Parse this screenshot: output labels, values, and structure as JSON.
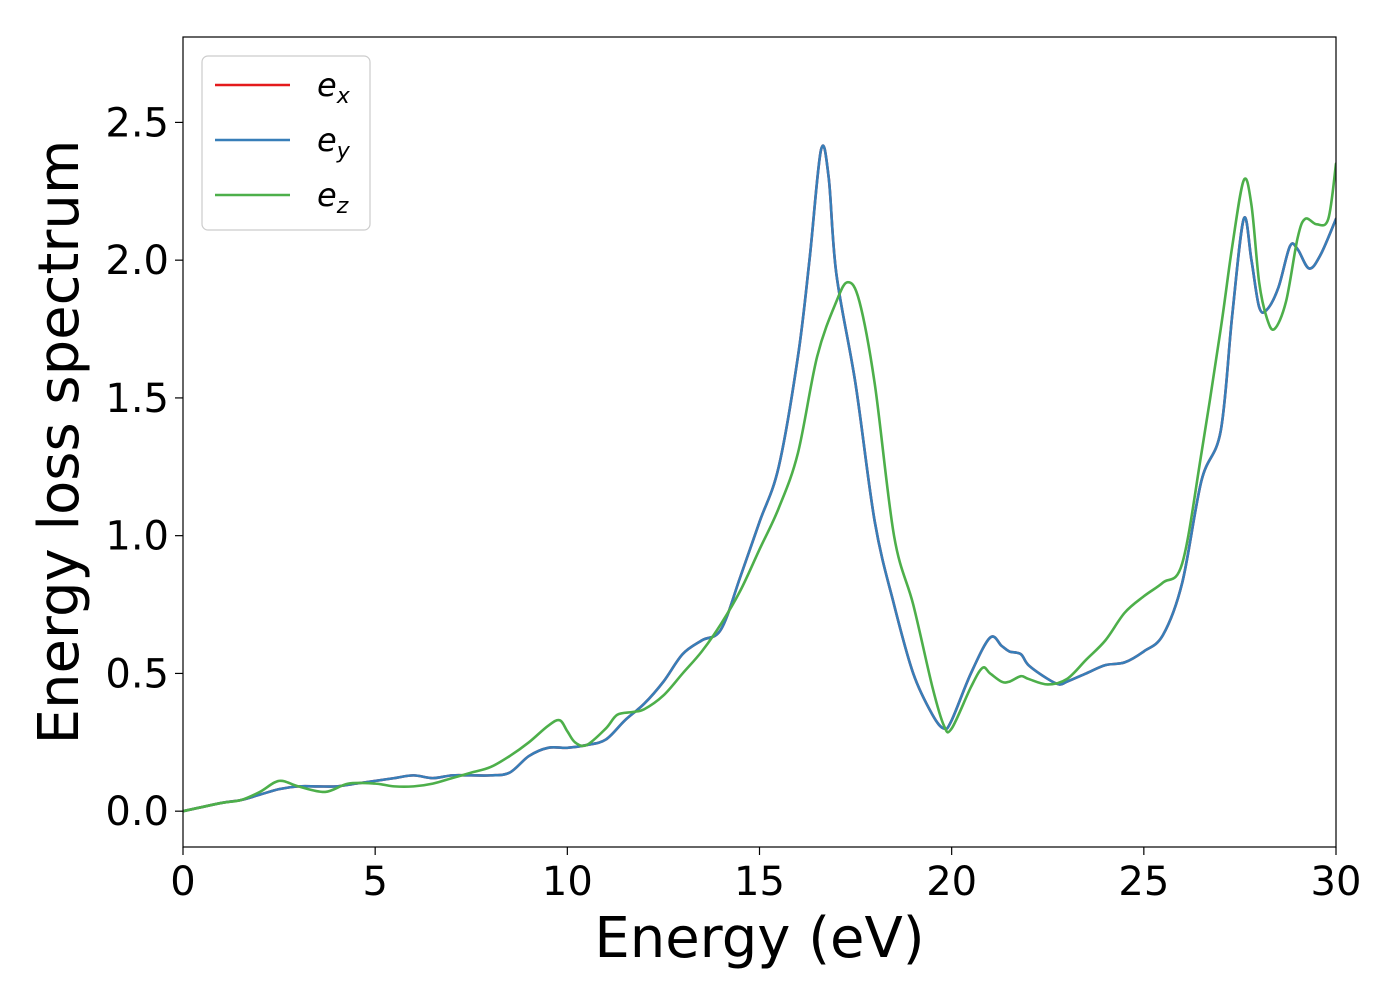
{
  "chart_data": {
    "type": "line",
    "xlabel": "Energy (eV)",
    "ylabel": "Energy loss spectrum",
    "xlim": [
      0,
      30
    ],
    "ylim": [
      -0.13,
      2.81
    ],
    "xticks": [
      0,
      5,
      10,
      15,
      20,
      25,
      30
    ],
    "yticks": [
      0.0,
      0.5,
      1.0,
      1.5,
      2.0,
      2.5
    ],
    "xtick_labels": [
      "0",
      "5",
      "10",
      "15",
      "20",
      "25",
      "30"
    ],
    "ytick_labels": [
      "0.0",
      "0.5",
      "1.0",
      "1.5",
      "2.0",
      "2.5"
    ],
    "grid": false,
    "legend_position": "top-left",
    "series": [
      {
        "name": "e_x",
        "label_base": "e",
        "label_sub": "x",
        "color": "#e41a1c",
        "x": [
          0,
          1,
          1.5,
          2,
          2.5,
          3,
          3.5,
          4,
          4.5,
          5,
          5.5,
          6,
          6.5,
          7,
          7.5,
          8,
          8.5,
          9,
          9.5,
          10,
          10.5,
          11,
          11.5,
          12,
          12.5,
          13,
          13.5,
          14,
          14.5,
          15,
          15.5,
          16,
          16.3,
          16.6,
          16.8,
          17,
          17.5,
          18,
          18.5,
          19,
          19.5,
          19.8,
          20,
          20.5,
          21,
          21.3,
          21.5,
          21.8,
          22,
          22.5,
          22.8,
          23,
          23.5,
          24,
          24.5,
          25,
          25.5,
          26,
          26.5,
          27,
          27.3,
          27.6,
          27.8,
          28,
          28.2,
          28.5,
          28.8,
          29,
          29.3,
          29.6,
          30
        ],
        "y": [
          0.0,
          0.03,
          0.04,
          0.06,
          0.08,
          0.09,
          0.09,
          0.09,
          0.1,
          0.11,
          0.12,
          0.13,
          0.12,
          0.13,
          0.13,
          0.13,
          0.14,
          0.2,
          0.23,
          0.23,
          0.24,
          0.26,
          0.33,
          0.39,
          0.47,
          0.57,
          0.62,
          0.66,
          0.85,
          1.05,
          1.25,
          1.65,
          2.0,
          2.4,
          2.3,
          1.95,
          1.55,
          1.05,
          0.75,
          0.5,
          0.35,
          0.3,
          0.33,
          0.5,
          0.63,
          0.6,
          0.58,
          0.57,
          0.53,
          0.48,
          0.46,
          0.47,
          0.5,
          0.53,
          0.54,
          0.58,
          0.64,
          0.83,
          1.2,
          1.38,
          1.8,
          2.15,
          2.0,
          1.83,
          1.82,
          1.9,
          2.05,
          2.04,
          1.97,
          2.02,
          2.15
        ]
      },
      {
        "name": "e_y",
        "label_base": "e",
        "label_sub": "y",
        "color": "#377eb8",
        "x": [
          0,
          1,
          1.5,
          2,
          2.5,
          3,
          3.5,
          4,
          4.5,
          5,
          5.5,
          6,
          6.5,
          7,
          7.5,
          8,
          8.5,
          9,
          9.5,
          10,
          10.5,
          11,
          11.5,
          12,
          12.5,
          13,
          13.5,
          14,
          14.5,
          15,
          15.5,
          16,
          16.3,
          16.6,
          16.8,
          17,
          17.5,
          18,
          18.5,
          19,
          19.5,
          19.8,
          20,
          20.5,
          21,
          21.3,
          21.5,
          21.8,
          22,
          22.5,
          22.8,
          23,
          23.5,
          24,
          24.5,
          25,
          25.5,
          26,
          26.5,
          27,
          27.3,
          27.6,
          27.8,
          28,
          28.2,
          28.5,
          28.8,
          29,
          29.3,
          29.6,
          30
        ],
        "y": [
          0.0,
          0.03,
          0.04,
          0.06,
          0.08,
          0.09,
          0.09,
          0.09,
          0.1,
          0.11,
          0.12,
          0.13,
          0.12,
          0.13,
          0.13,
          0.13,
          0.14,
          0.2,
          0.23,
          0.23,
          0.24,
          0.26,
          0.33,
          0.39,
          0.47,
          0.57,
          0.62,
          0.66,
          0.85,
          1.05,
          1.25,
          1.65,
          2.0,
          2.4,
          2.3,
          1.95,
          1.55,
          1.05,
          0.75,
          0.5,
          0.35,
          0.3,
          0.33,
          0.5,
          0.63,
          0.6,
          0.58,
          0.57,
          0.53,
          0.48,
          0.46,
          0.47,
          0.5,
          0.53,
          0.54,
          0.58,
          0.64,
          0.83,
          1.2,
          1.38,
          1.8,
          2.15,
          2.0,
          1.83,
          1.82,
          1.9,
          2.05,
          2.04,
          1.97,
          2.02,
          2.15
        ]
      },
      {
        "name": "e_z",
        "label_base": "e",
        "label_sub": "z",
        "color": "#4daf4a",
        "x": [
          0,
          1,
          1.5,
          2,
          2.5,
          3,
          3.7,
          4.3,
          5,
          5.5,
          6,
          6.5,
          7,
          7.5,
          8,
          8.5,
          9,
          9.5,
          9.8,
          10,
          10.2,
          10.5,
          11,
          11.3,
          11.7,
          12,
          12.5,
          13,
          13.5,
          14,
          14.5,
          15,
          15.5,
          16,
          16.5,
          17,
          17.3,
          17.6,
          18,
          18.5,
          19,
          19.5,
          19.8,
          20,
          20.5,
          20.8,
          21,
          21.3,
          21.5,
          21.8,
          22,
          22.5,
          23,
          23.5,
          24,
          24.5,
          25,
          25.5,
          26,
          26.5,
          27,
          27.3,
          27.6,
          27.8,
          28,
          28.2,
          28.4,
          28.7,
          29,
          29.2,
          29.5,
          29.8,
          30
        ],
        "y": [
          0.0,
          0.03,
          0.04,
          0.07,
          0.11,
          0.09,
          0.07,
          0.1,
          0.1,
          0.09,
          0.09,
          0.1,
          0.12,
          0.14,
          0.16,
          0.2,
          0.25,
          0.31,
          0.33,
          0.29,
          0.25,
          0.24,
          0.3,
          0.35,
          0.36,
          0.37,
          0.42,
          0.5,
          0.58,
          0.68,
          0.8,
          0.95,
          1.1,
          1.3,
          1.65,
          1.85,
          1.92,
          1.85,
          1.55,
          1.0,
          0.75,
          0.45,
          0.31,
          0.3,
          0.45,
          0.52,
          0.5,
          0.47,
          0.47,
          0.49,
          0.48,
          0.46,
          0.48,
          0.55,
          0.62,
          0.72,
          0.78,
          0.83,
          0.9,
          1.3,
          1.75,
          2.05,
          2.29,
          2.2,
          1.92,
          1.79,
          1.75,
          1.85,
          2.08,
          2.15,
          2.13,
          2.15,
          2.35
        ]
      }
    ]
  }
}
